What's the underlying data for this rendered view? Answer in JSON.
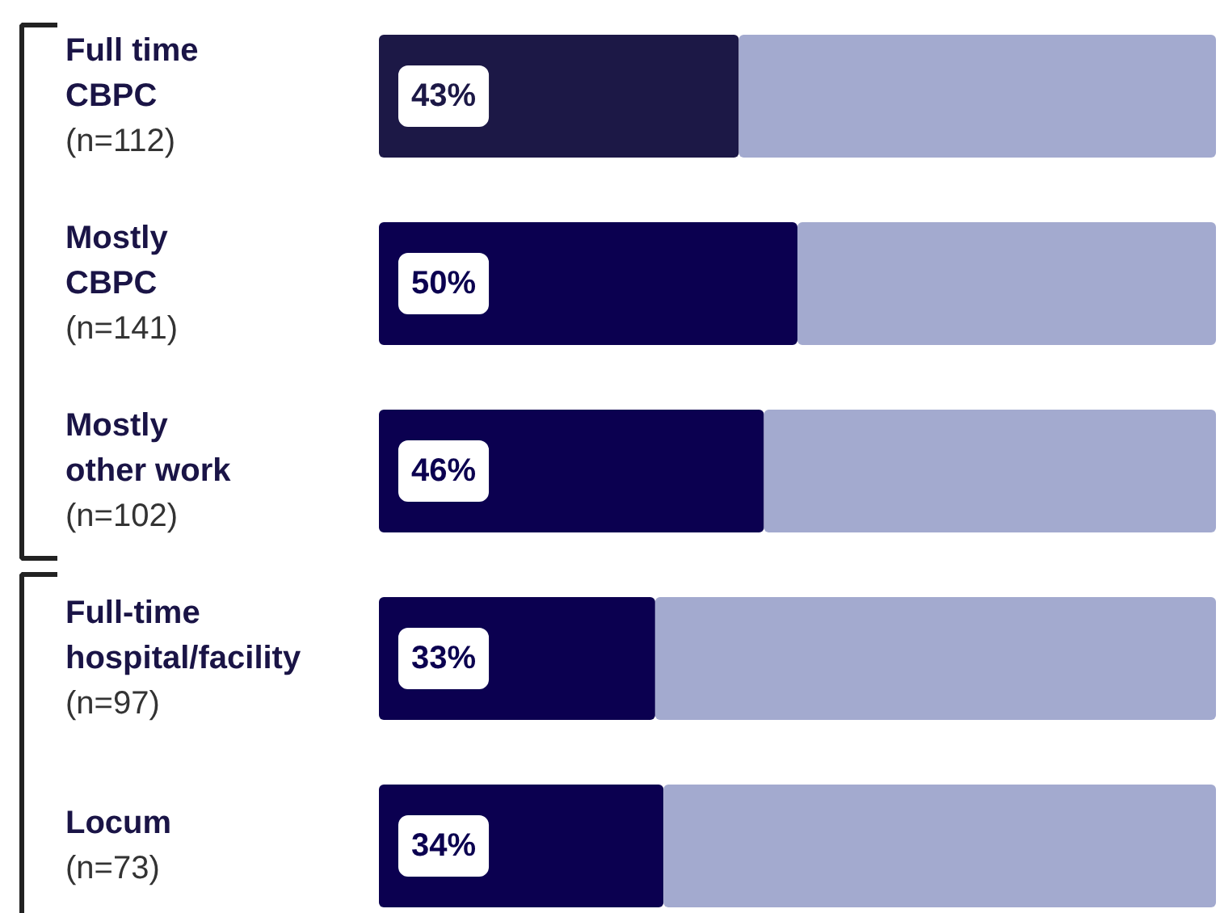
{
  "chart_data": {
    "type": "bar",
    "orientation": "horizontal",
    "stacked": true,
    "categories": [
      "Full time\nCBPC\n(n=112)",
      "Mostly\nCBPC\n(n=141)",
      "Mostly\nother work\n(n=102)",
      "Full-time\nhospital/facility\n(n=97)",
      "Locum\n(n=73)"
    ],
    "series": [
      {
        "colors": [
          "#1c1846",
          "#0b0050",
          "#0b0050",
          "#0b0050",
          "#0b0050"
        ],
        "values": [
          43,
          50,
          46,
          33,
          34
        ],
        "value_labels": [
          "43%",
          "50%",
          "46%",
          "33%",
          "34%"
        ]
      },
      {
        "color": "#a3aacf",
        "values": [
          57,
          50,
          54,
          67,
          66
        ]
      }
    ],
    "grid": false
  }
}
